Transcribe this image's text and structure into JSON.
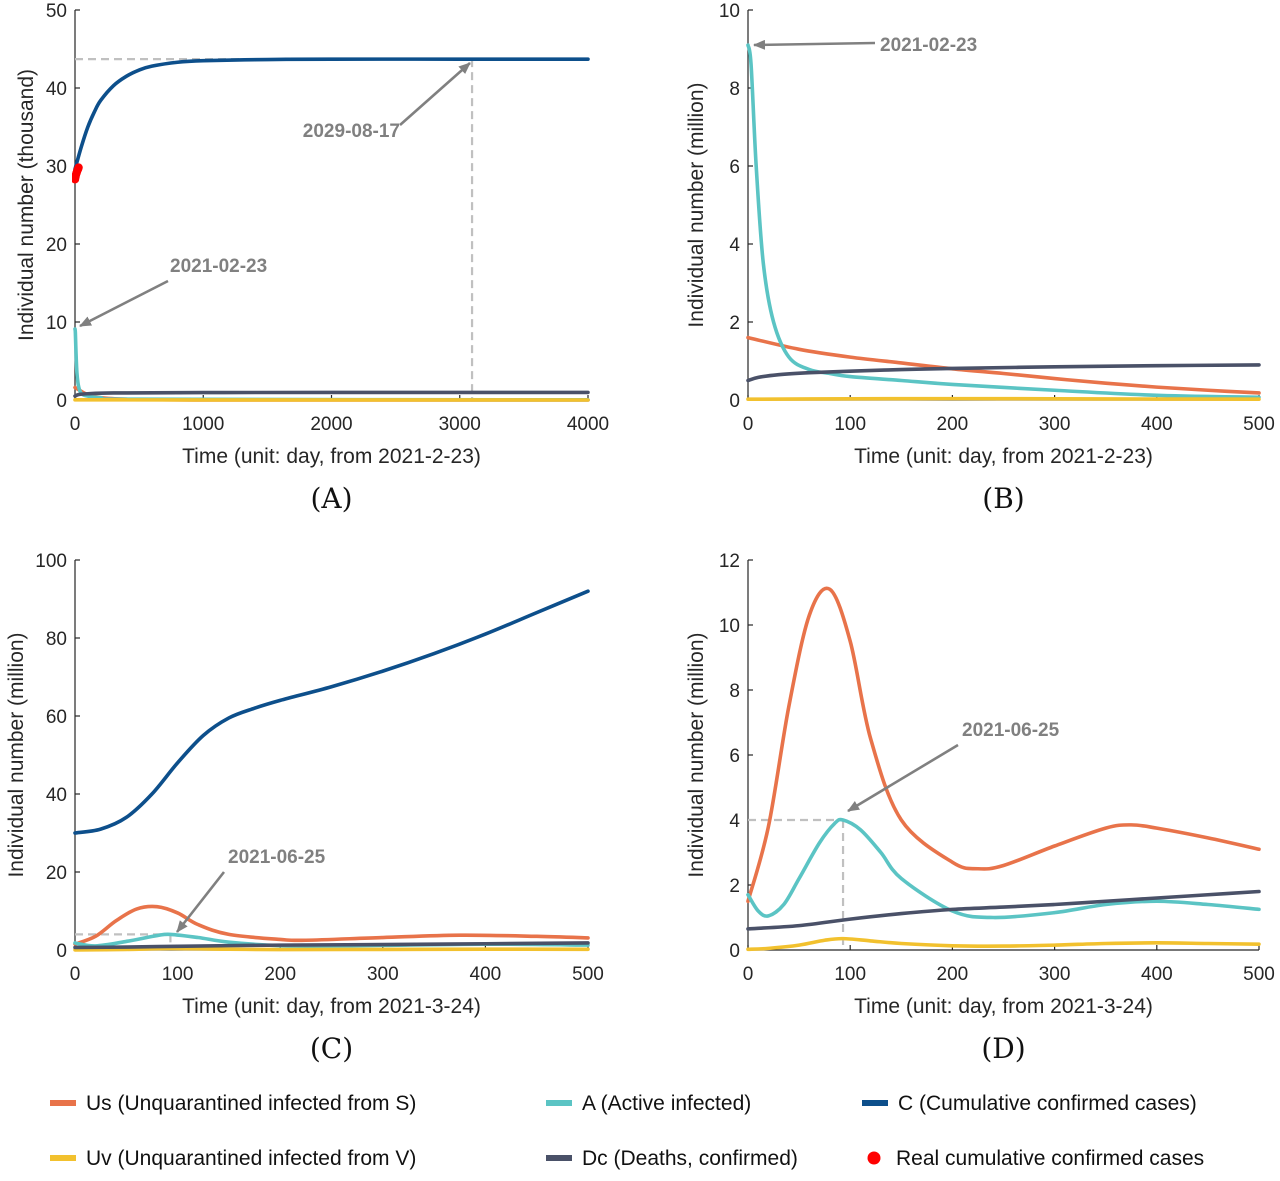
{
  "chart_data": [
    {
      "panel": "(A)",
      "type": "line",
      "xlabel": "Time (unit: day, from 2021-2-23)",
      "ylabel": "Individual number (thousand)",
      "xlim": [
        0,
        4000
      ],
      "ylim": [
        0,
        50
      ],
      "xticks": [
        0,
        1000,
        2000,
        3000,
        4000
      ],
      "yticks": [
        0,
        10,
        20,
        30,
        40,
        50
      ],
      "grid": false,
      "series": [
        {
          "name": "Us (Unquarantined infected from S)",
          "color": "#E8734A",
          "x": [
            0,
            10,
            30,
            60,
            100,
            200,
            400,
            800,
            1500,
            4000
          ],
          "y": [
            1.6,
            1.5,
            1.3,
            1.0,
            0.7,
            0.3,
            0.1,
            0.02,
            0,
            0
          ]
        },
        {
          "name": "A (Active infected)",
          "color": "#5BC4C4",
          "x": [
            0,
            3,
            8,
            15,
            25,
            40,
            60,
            100,
            200,
            500,
            4000
          ],
          "y": [
            9.1,
            8.6,
            6.0,
            3.5,
            2.0,
            1.1,
            0.7,
            0.5,
            0.3,
            0.1,
            0.02
          ]
        },
        {
          "name": "C (Cumulative confirmed cases)",
          "color": "#0D4F8B",
          "x": [
            0,
            50,
            100,
            150,
            200,
            300,
            400,
            500,
            600,
            800,
            1000,
            1500,
            2000,
            3000,
            4000
          ],
          "y": [
            29.6,
            32.5,
            35.0,
            36.9,
            38.4,
            40.3,
            41.5,
            42.3,
            42.8,
            43.3,
            43.5,
            43.65,
            43.7,
            43.7,
            43.7
          ]
        },
        {
          "name": "Uv (Unquarantined infected from V)",
          "color": "#F2C12E",
          "x": [
            0,
            100,
            300,
            1000,
            4000
          ],
          "y": [
            0.02,
            0.03,
            0.02,
            0.01,
            0
          ]
        },
        {
          "name": "Dc (Deaths, confirmed)",
          "color": "#4A5168",
          "x": [
            0,
            30,
            100,
            300,
            1000,
            2000,
            4000
          ],
          "y": [
            0.5,
            0.7,
            0.8,
            0.9,
            0.95,
            0.97,
            0.97
          ]
        },
        {
          "name": "Real cumulative confirmed cases",
          "color": "#FF0000",
          "x": [
            0,
            4,
            8,
            12,
            16,
            20,
            24,
            28
          ],
          "y": [
            28.3,
            28.6,
            28.9,
            29.1,
            29.3,
            29.5,
            29.6,
            29.8
          ]
        }
      ],
      "reference_lines": [
        {
          "x": 3096,
          "y": 43.7
        }
      ],
      "annotations": [
        {
          "text": "2029-08-17",
          "x": 3096,
          "y": 43.7
        },
        {
          "text": "2021-02-23",
          "x": 0,
          "y": 9.1
        }
      ]
    },
    {
      "panel": "(B)",
      "type": "line",
      "xlabel": "Time (unit: day, from 2021-2-23)",
      "ylabel": "Individual number (million)",
      "xlim": [
        0,
        500
      ],
      "ylim": [
        0,
        10
      ],
      "xticks": [
        0,
        100,
        200,
        300,
        400,
        500
      ],
      "yticks": [
        0,
        2,
        4,
        6,
        8,
        10
      ],
      "grid": false,
      "series": [
        {
          "name": "Us (Unquarantined infected from S)",
          "color": "#E8734A",
          "x": [
            0,
            50,
            100,
            150,
            200,
            250,
            300,
            350,
            400,
            450,
            500
          ],
          "y": [
            1.6,
            1.3,
            1.1,
            0.95,
            0.8,
            0.68,
            0.55,
            0.43,
            0.33,
            0.25,
            0.18
          ]
        },
        {
          "name": "A (Active infected)",
          "color": "#5BC4C4",
          "x": [
            0,
            3,
            8,
            15,
            25,
            40,
            60,
            80,
            100,
            150,
            200,
            300,
            400,
            500
          ],
          "y": [
            9.1,
            8.6,
            6.0,
            3.5,
            2.0,
            1.1,
            0.78,
            0.68,
            0.6,
            0.5,
            0.4,
            0.25,
            0.12,
            0.07
          ]
        },
        {
          "name": "Uv (Unquarantined infected from V)",
          "color": "#F2C12E",
          "x": [
            0,
            100,
            200,
            300,
            400,
            500
          ],
          "y": [
            0.02,
            0.03,
            0.035,
            0.03,
            0.025,
            0.02
          ]
        },
        {
          "name": "Dc (Deaths, confirmed)",
          "color": "#4A5168",
          "x": [
            0,
            10,
            30,
            60,
            100,
            150,
            200,
            300,
            400,
            500
          ],
          "y": [
            0.5,
            0.58,
            0.65,
            0.7,
            0.74,
            0.78,
            0.81,
            0.85,
            0.88,
            0.9
          ]
        }
      ],
      "annotations": [
        {
          "text": "2021-02-23",
          "x": 0,
          "y": 9.1
        }
      ]
    },
    {
      "panel": "(C)",
      "type": "line",
      "xlabel": "Time (unit: day, from 2021-3-24)",
      "ylabel": "Individual number (million)",
      "xlim": [
        0,
        500
      ],
      "ylim": [
        0,
        100
      ],
      "xticks": [
        0,
        100,
        200,
        300,
        400,
        500
      ],
      "yticks": [
        0,
        20,
        40,
        60,
        80,
        100
      ],
      "grid": false,
      "series": [
        {
          "name": "C (Cumulative confirmed cases)",
          "color": "#0D4F8B",
          "x": [
            0,
            25,
            50,
            75,
            100,
            125,
            150,
            175,
            200,
            250,
            300,
            350,
            400,
            450,
            500
          ],
          "y": [
            30,
            31,
            34,
            40,
            48,
            55,
            59.5,
            62,
            64,
            67.5,
            71.5,
            76,
            81,
            86.5,
            92
          ]
        },
        {
          "name": "Us (Unquarantined infected from S)",
          "color": "#E8734A",
          "x": [
            0,
            20,
            40,
            60,
            80,
            100,
            120,
            150,
            200,
            225,
            300,
            375,
            450,
            500
          ],
          "y": [
            1.5,
            3.5,
            7.5,
            10.5,
            11.1,
            9.5,
            6.5,
            4.0,
            2.7,
            2.5,
            3.2,
            3.8,
            3.5,
            3.1
          ]
        },
        {
          "name": "A (Active infected)",
          "color": "#5BC4C4",
          "x": [
            0,
            20,
            50,
            80,
            93,
            120,
            150,
            200,
            240,
            300,
            400,
            500
          ],
          "y": [
            1.8,
            1.05,
            2.2,
            3.7,
            4.0,
            3.2,
            2.0,
            1.1,
            1.0,
            1.2,
            1.5,
            1.25
          ]
        },
        {
          "name": "Uv (Unquarantined infected from V)",
          "color": "#F2C12E",
          "x": [
            0,
            50,
            93,
            150,
            200,
            300,
            400,
            500
          ],
          "y": [
            0.02,
            0.15,
            0.35,
            0.2,
            0.12,
            0.15,
            0.22,
            0.18
          ]
        },
        {
          "name": "Dc (Deaths, confirmed)",
          "color": "#4A5168",
          "x": [
            0,
            50,
            100,
            150,
            200,
            300,
            400,
            500
          ],
          "y": [
            0.65,
            0.75,
            0.95,
            1.12,
            1.25,
            1.4,
            1.6,
            1.8
          ]
        }
      ],
      "reference_lines": [
        {
          "x": 93,
          "y": 4.0
        }
      ],
      "annotations": [
        {
          "text": "2021-06-25",
          "x": 93,
          "y": 4.0
        }
      ]
    },
    {
      "panel": "(D)",
      "type": "line",
      "xlabel": "Time (unit: day, from 2021-3-24)",
      "ylabel": "Individual number (million)",
      "xlim": [
        0,
        500
      ],
      "ylim": [
        0,
        12
      ],
      "xticks": [
        0,
        100,
        200,
        300,
        400,
        500
      ],
      "yticks": [
        0,
        2,
        4,
        6,
        8,
        10,
        12
      ],
      "grid": false,
      "series": [
        {
          "name": "Us (Unquarantined infected from S)",
          "color": "#E8734A",
          "x": [
            0,
            20,
            40,
            60,
            80,
            100,
            120,
            150,
            200,
            225,
            250,
            300,
            350,
            375,
            400,
            450,
            500
          ],
          "y": [
            1.5,
            3.8,
            7.5,
            10.3,
            11.1,
            9.5,
            6.5,
            4.0,
            2.7,
            2.5,
            2.6,
            3.2,
            3.75,
            3.85,
            3.75,
            3.45,
            3.1
          ]
        },
        {
          "name": "A (Active infected)",
          "color": "#5BC4C4",
          "x": [
            0,
            10,
            20,
            35,
            50,
            70,
            85,
            93,
            110,
            130,
            150,
            200,
            240,
            300,
            350,
            400,
            450,
            500
          ],
          "y": [
            1.7,
            1.2,
            1.05,
            1.4,
            2.2,
            3.3,
            3.9,
            4.0,
            3.7,
            3.0,
            2.2,
            1.2,
            1.0,
            1.15,
            1.4,
            1.5,
            1.4,
            1.25
          ]
        },
        {
          "name": "Uv (Unquarantined infected from V)",
          "color": "#F2C12E",
          "x": [
            0,
            20,
            50,
            75,
            93,
            120,
            150,
            200,
            250,
            300,
            350,
            400,
            450,
            500
          ],
          "y": [
            0.02,
            0.05,
            0.15,
            0.3,
            0.35,
            0.28,
            0.2,
            0.13,
            0.12,
            0.15,
            0.2,
            0.22,
            0.2,
            0.18
          ]
        },
        {
          "name": "Dc (Deaths, confirmed)",
          "color": "#4A5168",
          "x": [
            0,
            50,
            100,
            150,
            200,
            250,
            300,
            350,
            400,
            450,
            500
          ],
          "y": [
            0.65,
            0.75,
            0.95,
            1.12,
            1.25,
            1.32,
            1.4,
            1.5,
            1.6,
            1.7,
            1.8
          ]
        }
      ],
      "reference_lines": [
        {
          "x": 93,
          "y": 4.0
        }
      ],
      "annotations": [
        {
          "text": "2021-06-25",
          "x": 93,
          "y": 4.0
        }
      ]
    }
  ],
  "legend": {
    "placement": "bottom",
    "items": [
      {
        "label": "Us (Unquarantined infected from S)",
        "color": "#E8734A",
        "marker": "line"
      },
      {
        "label": "A (Active infected)",
        "color": "#5BC4C4",
        "marker": "line"
      },
      {
        "label": "C (Cumulative confirmed cases)",
        "color": "#0D4F8B",
        "marker": "line"
      },
      {
        "label": "Uv (Unquarantined infected from V)",
        "color": "#F2C12E",
        "marker": "line"
      },
      {
        "label": "Dc (Deaths, confirmed)",
        "color": "#4A5168",
        "marker": "line"
      },
      {
        "label": "Real cumulative confirmed cases",
        "color": "#FF0000",
        "marker": "dot"
      }
    ]
  },
  "colors": {
    "annotation": "#808080",
    "reference_line": "#C0C0C0",
    "axis": "#262626"
  }
}
